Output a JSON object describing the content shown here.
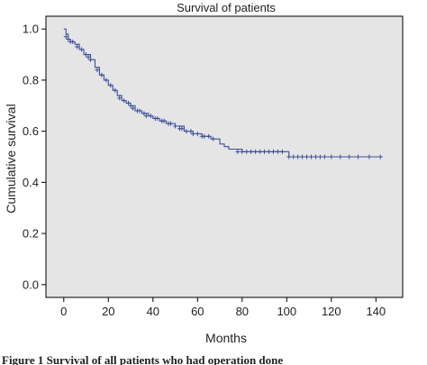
{
  "chart_data": {
    "type": "line",
    "title": "Survival of patients",
    "xlabel": "Months",
    "ylabel": "Cumulative survival",
    "xlim": [
      -8,
      152
    ],
    "ylim": [
      -0.05,
      1.05
    ],
    "xticks": [
      0,
      20,
      40,
      60,
      80,
      100,
      120,
      140
    ],
    "yticks": [
      0.0,
      0.2,
      0.4,
      0.6,
      0.8,
      1.0
    ],
    "ytick_labels": [
      "0.0",
      "0.2",
      "0.4",
      "0.6",
      "0.8",
      "1.0"
    ],
    "grid": false,
    "plot_background": "#e5e5e5",
    "line_color": "#3a4f9a",
    "series": [
      {
        "step": true,
        "x": [
          0,
          1,
          2,
          3,
          5,
          7,
          9,
          12,
          14,
          16,
          18,
          20,
          22,
          24,
          26,
          28,
          30,
          32,
          35,
          38,
          40,
          43,
          46,
          50,
          54,
          58,
          62,
          66,
          70,
          72,
          74,
          80,
          96,
          101,
          110,
          125,
          142
        ],
        "y": [
          1.0,
          0.98,
          0.96,
          0.95,
          0.94,
          0.92,
          0.9,
          0.88,
          0.85,
          0.82,
          0.8,
          0.78,
          0.76,
          0.74,
          0.72,
          0.71,
          0.7,
          0.68,
          0.67,
          0.66,
          0.65,
          0.64,
          0.63,
          0.62,
          0.6,
          0.59,
          0.58,
          0.57,
          0.55,
          0.54,
          0.53,
          0.52,
          0.52,
          0.5,
          0.5,
          0.5,
          0.5
        ]
      }
    ],
    "censor_marks": {
      "x": [
        1,
        2,
        3,
        4,
        6,
        8,
        10,
        11,
        12,
        15,
        17,
        19,
        21,
        23,
        25,
        27,
        29,
        30,
        31,
        33,
        34,
        36,
        37,
        39,
        41,
        42,
        44,
        45,
        47,
        48,
        50,
        52,
        53,
        55,
        57,
        58,
        60,
        62,
        63,
        65,
        67,
        78,
        80,
        82,
        84,
        86,
        88,
        90,
        92,
        94,
        96,
        98,
        101,
        103,
        105,
        107,
        109,
        111,
        113,
        115,
        117,
        120,
        124,
        128,
        132,
        137,
        142
      ],
      "y": [
        0.97,
        0.96,
        0.95,
        0.95,
        0.93,
        0.92,
        0.9,
        0.89,
        0.88,
        0.84,
        0.82,
        0.8,
        0.78,
        0.76,
        0.73,
        0.72,
        0.71,
        0.7,
        0.69,
        0.68,
        0.68,
        0.67,
        0.66,
        0.66,
        0.65,
        0.65,
        0.64,
        0.64,
        0.63,
        0.63,
        0.62,
        0.61,
        0.61,
        0.6,
        0.6,
        0.59,
        0.59,
        0.58,
        0.58,
        0.58,
        0.57,
        0.52,
        0.52,
        0.52,
        0.52,
        0.52,
        0.52,
        0.52,
        0.52,
        0.52,
        0.52,
        0.52,
        0.5,
        0.5,
        0.5,
        0.5,
        0.5,
        0.5,
        0.5,
        0.5,
        0.5,
        0.5,
        0.5,
        0.5,
        0.5,
        0.5,
        0.5
      ]
    }
  },
  "caption": {
    "text": "Figure 1 Survival of all patients who had operation done"
  }
}
